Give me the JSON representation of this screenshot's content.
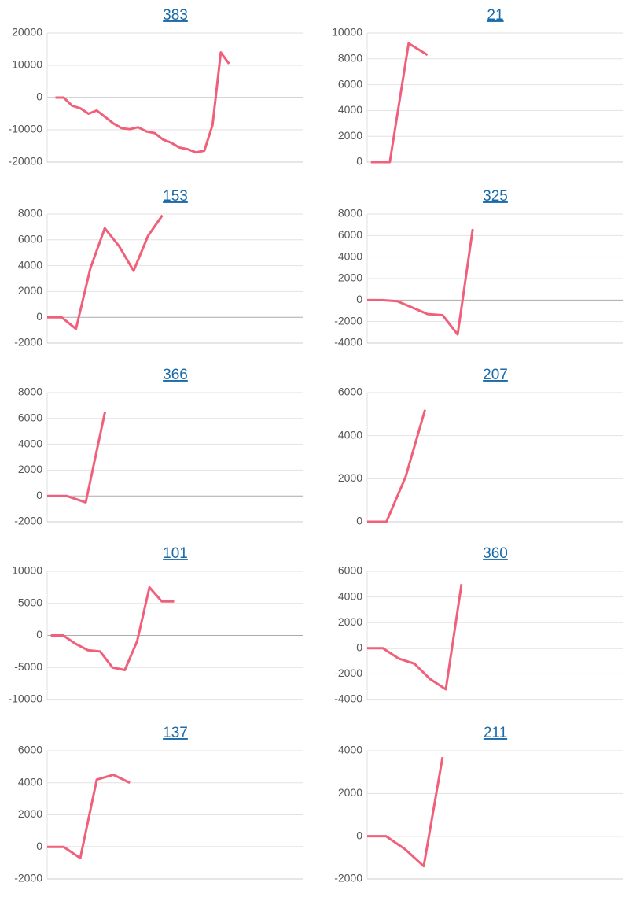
{
  "chart_data": [
    {
      "type": "line",
      "title": "383",
      "color": "#f0607a",
      "grid": true,
      "x": [
        0,
        1,
        2,
        3,
        4,
        5,
        6,
        7,
        8,
        9,
        10,
        11,
        12,
        13,
        14,
        15,
        16,
        17,
        18,
        19,
        20,
        21
      ],
      "xlim": [
        -1,
        30
      ],
      "values": [
        0,
        0,
        -2500,
        -3300,
        -5000,
        -4000,
        -6000,
        -8000,
        -9500,
        -9800,
        -9200,
        -10500,
        -11000,
        -13000,
        -14000,
        -15500,
        -16000,
        -17000,
        -16500,
        -8500,
        14000,
        10500
      ],
      "ylim": [
        -20000,
        20000
      ],
      "yticks": [
        -20000,
        -10000,
        0,
        10000,
        20000
      ]
    },
    {
      "type": "line",
      "title": "21",
      "color": "#f0607a",
      "grid": true,
      "x": [
        0,
        1,
        2,
        3
      ],
      "xlim": [
        -0.2,
        13.4
      ],
      "values": [
        0,
        0,
        9200,
        8300
      ],
      "ylim": [
        0,
        10000
      ],
      "yticks": [
        0,
        2000,
        4000,
        6000,
        8000,
        10000
      ]
    },
    {
      "type": "line",
      "title": "153",
      "color": "#f0607a",
      "grid": true,
      "x": [
        0,
        1,
        2,
        3,
        4,
        5,
        6,
        7,
        8
      ],
      "xlim": [
        0,
        17.8
      ],
      "values": [
        0,
        0,
        -900,
        3800,
        6900,
        5500,
        3600,
        6300,
        7900
      ],
      "ylim": [
        -2000,
        8000
      ],
      "yticks": [
        -2000,
        0,
        2000,
        4000,
        6000,
        8000
      ]
    },
    {
      "type": "line",
      "title": "325",
      "color": "#f0607a",
      "grid": true,
      "x": [
        0,
        1,
        2,
        3,
        4,
        5,
        6,
        7
      ],
      "xlim": [
        0,
        17
      ],
      "values": [
        0,
        0,
        -100,
        -700,
        -1300,
        -1400,
        -3200,
        6600
      ],
      "ylim": [
        -4000,
        8000
      ],
      "yticks": [
        -4000,
        -2000,
        0,
        2000,
        4000,
        6000,
        8000
      ]
    },
    {
      "type": "line",
      "title": "366",
      "color": "#f0607a",
      "grid": true,
      "x": [
        0,
        1,
        2,
        3
      ],
      "xlim": [
        0,
        13.3
      ],
      "values": [
        0,
        0,
        -500,
        6500
      ],
      "ylim": [
        -2000,
        8000
      ],
      "yticks": [
        -2000,
        0,
        2000,
        4000,
        6000,
        8000
      ]
    },
    {
      "type": "line",
      "title": "207",
      "color": "#f0607a",
      "grid": true,
      "x": [
        0,
        1,
        2,
        3
      ],
      "xlim": [
        0,
        13.3
      ],
      "values": [
        0,
        0,
        2100,
        5200
      ],
      "ylim": [
        0,
        6000
      ],
      "yticks": [
        0,
        2000,
        4000,
        6000
      ]
    },
    {
      "type": "line",
      "title": "101",
      "color": "#f0607a",
      "grid": true,
      "x": [
        0,
        1,
        2,
        3,
        4,
        5,
        6,
        7,
        8,
        9,
        10
      ],
      "xlim": [
        -0.3,
        20.5
      ],
      "values": [
        0,
        0,
        -1300,
        -2300,
        -2500,
        -5000,
        -5400,
        -900,
        7500,
        5300,
        5300
      ],
      "ylim": [
        -10000,
        10000
      ],
      "yticks": [
        -10000,
        -5000,
        0,
        5000,
        10000
      ]
    },
    {
      "type": "line",
      "title": "360",
      "color": "#f0607a",
      "grid": true,
      "x": [
        0,
        1,
        2,
        3,
        4,
        5,
        6
      ],
      "xlim": [
        0,
        16.3
      ],
      "values": [
        0,
        0,
        -800,
        -1200,
        -2400,
        -3200,
        5000
      ],
      "ylim": [
        -4000,
        6000
      ],
      "yticks": [
        -4000,
        -2000,
        0,
        2000,
        4000,
        6000
      ]
    },
    {
      "type": "line",
      "title": "137",
      "color": "#f0607a",
      "grid": true,
      "x": [
        0,
        1,
        2,
        3,
        4,
        5
      ],
      "xlim": [
        0,
        15.5
      ],
      "values": [
        0,
        0,
        -700,
        4200,
        4500,
        4000
      ],
      "ylim": [
        -2000,
        6000
      ],
      "yticks": [
        -2000,
        0,
        2000,
        4000,
        6000
      ]
    },
    {
      "type": "line",
      "title": "211",
      "color": "#f0607a",
      "grid": true,
      "x": [
        0,
        1,
        2,
        3,
        4
      ],
      "xlim": [
        0,
        13.6
      ],
      "values": [
        0,
        0,
        -600,
        -1400,
        3700
      ],
      "ylim": [
        -2000,
        4000
      ],
      "yticks": [
        -2000,
        0,
        2000,
        4000
      ]
    }
  ]
}
